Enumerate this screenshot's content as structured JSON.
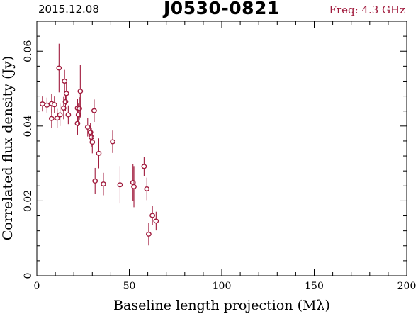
{
  "header": {
    "date": "2015.12.08",
    "source": "J0530-0821",
    "freq": "Freq: 4.3 GHz"
  },
  "colors": {
    "series": "#a01a3c",
    "axis": "#000000",
    "freq_text": "#a01a3c"
  },
  "chart_data": {
    "type": "scatter",
    "xlabel": "Baseline length projection (Mλ)",
    "ylabel": "Correlated flux density (Jy)",
    "xlim": [
      0,
      200
    ],
    "ylim": [
      0,
      0.068
    ],
    "xticks": [
      0,
      50,
      100,
      150,
      200
    ],
    "xtick_labels": [
      "0",
      "50",
      "100",
      "150",
      "200"
    ],
    "yticks": [
      0,
      0.02,
      0.04,
      0.06
    ],
    "ytick_labels": [
      "0",
      "0.02",
      "0.04",
      "0.06"
    ],
    "grid": false,
    "points": [
      {
        "x": 3.0,
        "y": 0.0459,
        "err": 0.002
      },
      {
        "x": 5.5,
        "y": 0.0456,
        "err": 0.002
      },
      {
        "x": 8.0,
        "y": 0.046,
        "err": 0.0025
      },
      {
        "x": 8.0,
        "y": 0.042,
        "err": 0.0025
      },
      {
        "x": 9.5,
        "y": 0.0457,
        "err": 0.0022
      },
      {
        "x": 11.0,
        "y": 0.0421,
        "err": 0.0025
      },
      {
        "x": 12.0,
        "y": 0.0555,
        "err": 0.0065
      },
      {
        "x": 12.5,
        "y": 0.043,
        "err": 0.003
      },
      {
        "x": 14.5,
        "y": 0.0448,
        "err": 0.003
      },
      {
        "x": 15.0,
        "y": 0.052,
        "err": 0.003
      },
      {
        "x": 15.5,
        "y": 0.0465,
        "err": 0.0025
      },
      {
        "x": 16.0,
        "y": 0.0487,
        "err": 0.003
      },
      {
        "x": 17.0,
        "y": 0.043,
        "err": 0.0025
      },
      {
        "x": 22.0,
        "y": 0.0448,
        "err": 0.0025
      },
      {
        "x": 22.0,
        "y": 0.0407,
        "err": 0.003
      },
      {
        "x": 22.5,
        "y": 0.043,
        "err": 0.003
      },
      {
        "x": 23.0,
        "y": 0.0447,
        "err": 0.003
      },
      {
        "x": 23.5,
        "y": 0.0493,
        "err": 0.007
      },
      {
        "x": 27.5,
        "y": 0.0397,
        "err": 0.0025
      },
      {
        "x": 29.0,
        "y": 0.0383,
        "err": 0.0025
      },
      {
        "x": 29.5,
        "y": 0.037,
        "err": 0.0025
      },
      {
        "x": 30.0,
        "y": 0.0357,
        "err": 0.003
      },
      {
        "x": 31.0,
        "y": 0.0441,
        "err": 0.003
      },
      {
        "x": 31.5,
        "y": 0.0253,
        "err": 0.0035
      },
      {
        "x": 33.5,
        "y": 0.0327,
        "err": 0.004
      },
      {
        "x": 36.0,
        "y": 0.0245,
        "err": 0.003
      },
      {
        "x": 41.0,
        "y": 0.0358,
        "err": 0.003
      },
      {
        "x": 45.0,
        "y": 0.0243,
        "err": 0.005
      },
      {
        "x": 52.0,
        "y": 0.0249,
        "err": 0.005
      },
      {
        "x": 52.5,
        "y": 0.0238,
        "err": 0.0055
      },
      {
        "x": 58.0,
        "y": 0.0292,
        "err": 0.0025
      },
      {
        "x": 59.5,
        "y": 0.0232,
        "err": 0.003
      },
      {
        "x": 60.5,
        "y": 0.0111,
        "err": 0.003
      },
      {
        "x": 62.5,
        "y": 0.0161,
        "err": 0.0025
      },
      {
        "x": 64.5,
        "y": 0.0146,
        "err": 0.0025
      }
    ]
  }
}
